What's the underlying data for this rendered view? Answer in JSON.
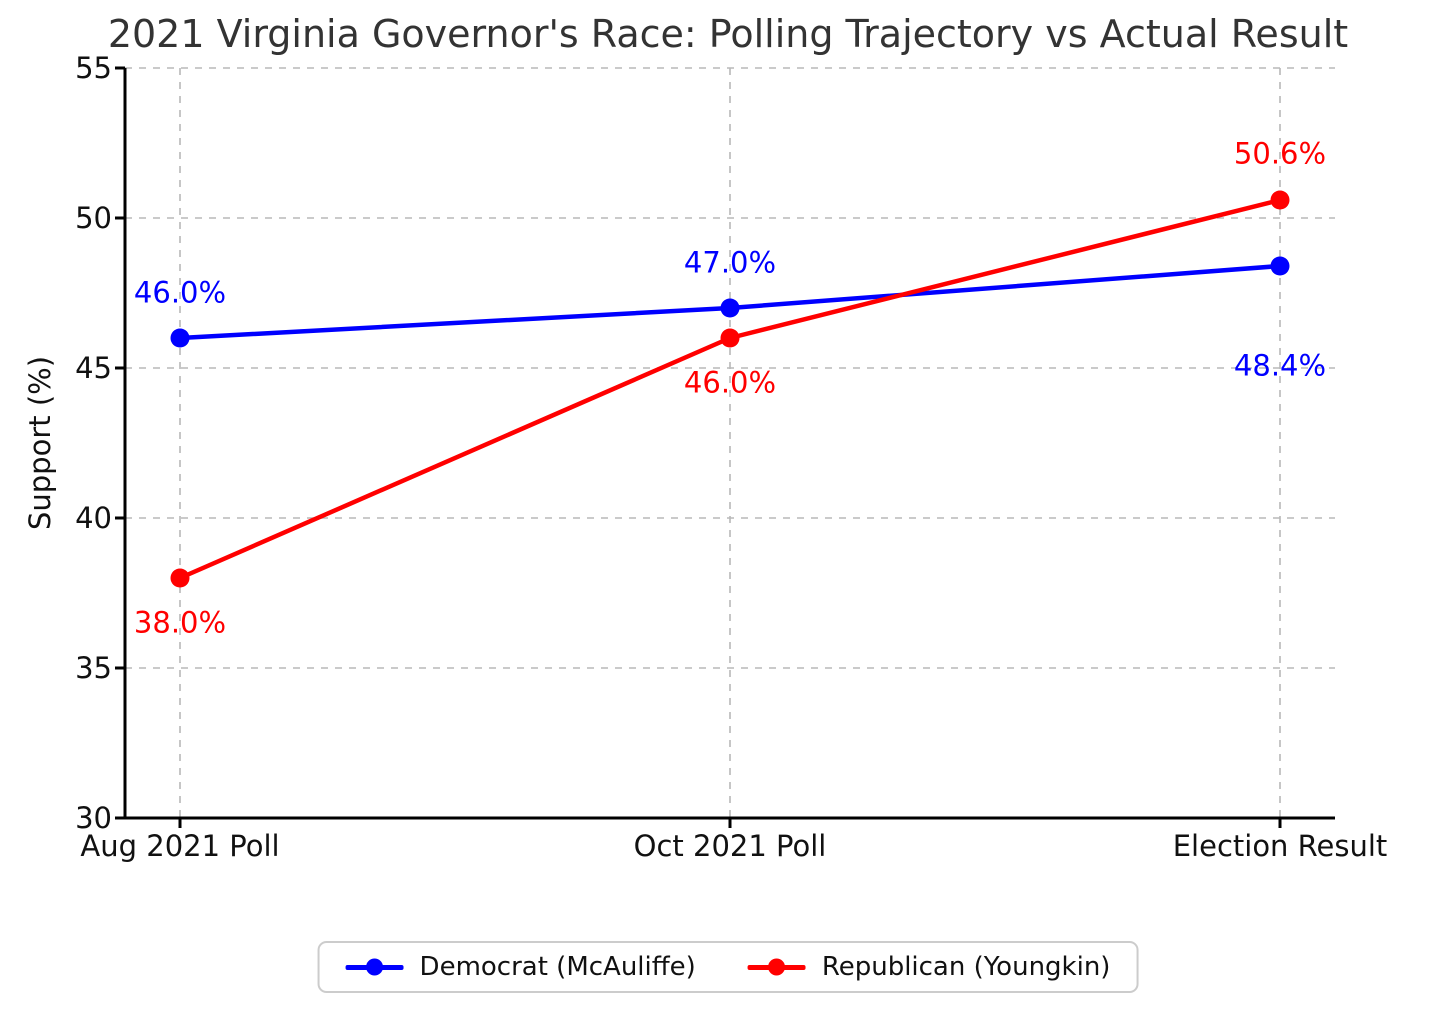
{
  "title": "2021 Virginia Governor's Race: Polling Trajectory vs Actual Result",
  "chart_data": {
    "type": "line",
    "title": "2021 Virginia Governor's Race: Polling Trajectory vs Actual Result",
    "categories": [
      "Aug 2021 Poll",
      "Oct 2021 Poll",
      "Election Result"
    ],
    "series": [
      {
        "name": "Democrat (McAuliffe)",
        "color": "#0000ff",
        "values": [
          46.0,
          47.0,
          48.4
        ],
        "point_labels": [
          {
            "text": "46.0%",
            "dx": 0,
            "dy": -45
          },
          {
            "text": "47.0%",
            "dx": 0,
            "dy": -45
          },
          {
            "text": "48.4%",
            "dx": 0,
            "dy": 100
          }
        ]
      },
      {
        "name": "Republican (Youngkin)",
        "color": "#ff0000",
        "values": [
          38.0,
          46.0,
          50.6
        ],
        "point_labels": [
          {
            "text": "38.0%",
            "dx": 0,
            "dy": 45
          },
          {
            "text": "46.0%",
            "dx": 0,
            "dy": 45
          },
          {
            "text": "50.6%",
            "dx": 0,
            "dy": -46
          }
        ]
      }
    ],
    "xlabel": "",
    "ylabel": "Support (%)",
    "ylim": [
      30,
      55
    ],
    "yticks": [
      30,
      35,
      40,
      45,
      50,
      55
    ],
    "grid": true,
    "legend_position": "bottom-center"
  },
  "colors": {
    "grid": "#b8b8b8",
    "spine": "#000000",
    "title": "#333333",
    "tick_label": "#111111",
    "background": "#ffffff",
    "legend_border": "#cccccc"
  }
}
